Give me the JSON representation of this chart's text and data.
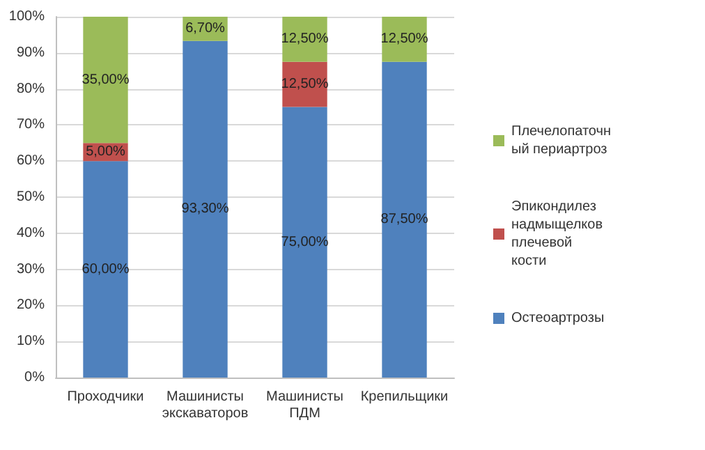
{
  "chart_data": {
    "type": "bar",
    "stacked": true,
    "categories": [
      "Проходчики",
      "Машинисты экскаваторов",
      "Машинисты ПДМ",
      "Крепильщики"
    ],
    "series": [
      {
        "name": "Остеоартрозы",
        "color": "#4f81bd",
        "values": [
          60,
          93.3,
          75,
          87.5
        ],
        "value_labels": [
          "60,00%",
          "93,30%",
          "75,00%",
          "87,50%"
        ]
      },
      {
        "name": "Эпикондилез надмыщелков плечевой кости",
        "color": "#c0504d",
        "values": [
          5,
          null,
          12.5,
          null
        ],
        "value_labels": [
          "5,00%",
          null,
          "12,50%",
          null
        ]
      },
      {
        "name": "Плечелопаточный периартроз",
        "color": "#9bbb59",
        "values": [
          35,
          6.7,
          12.5,
          12.5
        ],
        "value_labels": [
          "35,00%",
          "6,70%",
          "12,50%",
          "12,50%"
        ]
      }
    ],
    "ylim": [
      0,
      100
    ],
    "yticks": [
      {
        "value": 0,
        "label": "0%"
      },
      {
        "value": 10,
        "label": "10%"
      },
      {
        "value": 20,
        "label": "20%"
      },
      {
        "value": 30,
        "label": "30%"
      },
      {
        "value": 40,
        "label": "40%"
      },
      {
        "value": 50,
        "label": "50%"
      },
      {
        "value": 60,
        "label": "60%"
      },
      {
        "value": 70,
        "label": "70%"
      },
      {
        "value": 80,
        "label": "80%"
      },
      {
        "value": 90,
        "label": "90%"
      },
      {
        "value": 100,
        "label": "100%"
      }
    ],
    "grid": true,
    "legend": "right"
  }
}
